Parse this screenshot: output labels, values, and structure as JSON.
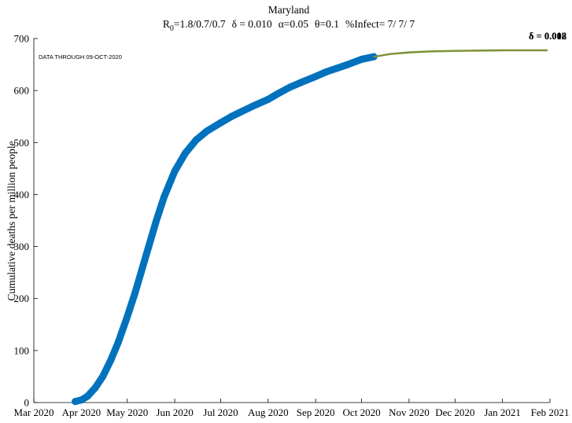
{
  "chart_data": {
    "type": "line",
    "title": "Maryland",
    "subtitle": {
      "r0_prefix": "R",
      "r0_subscript": "0",
      "r0_values": "=1.8/0.7/0.7",
      "delta_part": "δ = 0.010",
      "alpha_part": "α=0.05",
      "theta_part": "θ=0.1",
      "infect_part": "%Infect= 7/ 7/ 7"
    },
    "annotation": "DATA THROUGH 09-OCT-2020",
    "xlabel": "",
    "ylabel": "Cumulative deaths per million people",
    "ylim": [
      0,
      700
    ],
    "yticks": [
      0,
      100,
      200,
      300,
      400,
      500,
      600,
      700
    ],
    "xlim": [
      "2020-03-01",
      "2021-02-01"
    ],
    "xticks": [
      "2020-03-01",
      "2020-04-01",
      "2020-05-01",
      "2020-06-01",
      "2020-07-01",
      "2020-08-01",
      "2020-09-01",
      "2020-10-01",
      "2020-11-01",
      "2020-12-01",
      "2021-01-01",
      "2021-02-01"
    ],
    "xtick_labels": [
      "Mar 2020",
      "Apr 2020",
      "May 2020",
      "Jun 2020",
      "Jul 2020",
      "Aug 2020",
      "Sep 2020",
      "Oct 2020",
      "Nov 2020",
      "Dec 2020",
      "Jan 2021",
      "Feb 2021"
    ],
    "grid": false,
    "series": [
      {
        "role": "observed",
        "color": "#0072BD",
        "x": [
          "2020-03-28",
          "2020-04-01",
          "2020-04-05",
          "2020-04-10",
          "2020-04-15",
          "2020-04-20",
          "2020-04-25",
          "2020-05-01",
          "2020-05-06",
          "2020-05-10",
          "2020-05-15",
          "2020-05-20",
          "2020-05-25",
          "2020-06-01",
          "2020-06-08",
          "2020-06-15",
          "2020-06-22",
          "2020-07-01",
          "2020-07-08",
          "2020-07-15",
          "2020-07-22",
          "2020-08-01",
          "2020-08-08",
          "2020-08-15",
          "2020-08-22",
          "2020-09-01",
          "2020-09-08",
          "2020-09-15",
          "2020-09-22",
          "2020-10-01",
          "2020-10-09"
        ],
        "y": [
          2,
          5,
          12,
          28,
          50,
          80,
          115,
          165,
          210,
          250,
          300,
          350,
          395,
          445,
          480,
          505,
          522,
          538,
          550,
          560,
          570,
          583,
          595,
          606,
          615,
          627,
          636,
          643,
          650,
          660,
          665
        ]
      },
      {
        "role": "projection",
        "color": "#77AC30",
        "end_label": "δ = 0.008",
        "x": [
          "2020-10-09",
          "2020-10-20",
          "2020-11-01",
          "2020-11-15",
          "2020-12-01",
          "2020-12-15",
          "2021-01-01",
          "2021-01-15",
          "2021-01-30"
        ],
        "y": [
          665,
          670,
          673,
          675,
          676,
          676.5,
          677,
          677,
          677
        ]
      },
      {
        "role": "projection",
        "color": "#7E8F3A",
        "end_label": "δ = 0.012",
        "x": [
          "2020-10-09",
          "2020-10-20",
          "2020-11-01",
          "2020-11-15",
          "2020-12-01",
          "2020-12-15",
          "2021-01-01",
          "2021-01-15",
          "2021-01-30"
        ],
        "y": [
          665,
          670.5,
          673.5,
          675.5,
          676.5,
          677,
          677.5,
          677.5,
          677.5
        ]
      }
    ]
  }
}
